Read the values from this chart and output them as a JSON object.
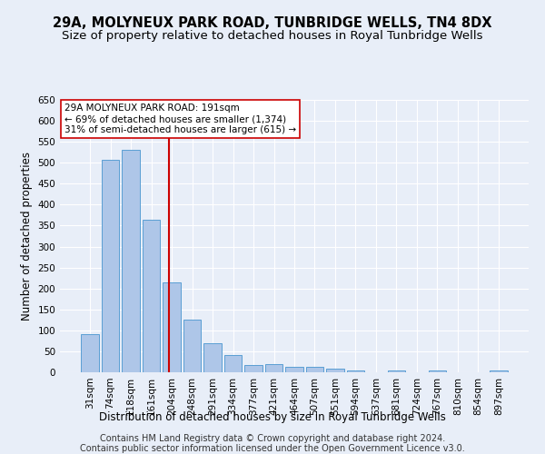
{
  "title": "29A, MOLYNEUX PARK ROAD, TUNBRIDGE WELLS, TN4 8DX",
  "subtitle": "Size of property relative to detached houses in Royal Tunbridge Wells",
  "xlabel": "Distribution of detached houses by size in Royal Tunbridge Wells",
  "ylabel": "Number of detached properties",
  "footer_line1": "Contains HM Land Registry data © Crown copyright and database right 2024.",
  "footer_line2": "Contains public sector information licensed under the Open Government Licence v3.0.",
  "bar_labels": [
    "31sqm",
    "74sqm",
    "118sqm",
    "161sqm",
    "204sqm",
    "248sqm",
    "291sqm",
    "334sqm",
    "377sqm",
    "421sqm",
    "464sqm",
    "507sqm",
    "551sqm",
    "594sqm",
    "637sqm",
    "681sqm",
    "724sqm",
    "767sqm",
    "810sqm",
    "854sqm",
    "897sqm"
  ],
  "bar_values": [
    90,
    507,
    530,
    365,
    215,
    125,
    70,
    42,
    17,
    20,
    12,
    12,
    9,
    5,
    0,
    5,
    0,
    4,
    0,
    0,
    4
  ],
  "bar_color": "#aec6e8",
  "bar_edge_color": "#5a9fd4",
  "annotation_text": "29A MOLYNEUX PARK ROAD: 191sqm\n← 69% of detached houses are smaller (1,374)\n31% of semi-detached houses are larger (615) →",
  "vline_x": 3.88,
  "vline_color": "#cc0000",
  "annotation_box_color": "#ffffff",
  "annotation_box_edge": "#cc0000",
  "ylim": [
    0,
    650
  ],
  "yticks": [
    0,
    50,
    100,
    150,
    200,
    250,
    300,
    350,
    400,
    450,
    500,
    550,
    600,
    650
  ],
  "background_color": "#e8eef8",
  "grid_color": "#ffffff",
  "title_fontsize": 10.5,
  "subtitle_fontsize": 9.5,
  "axis_label_fontsize": 8.5,
  "tick_fontsize": 7.5,
  "footer_fontsize": 7.0,
  "annot_fontsize": 7.5
}
